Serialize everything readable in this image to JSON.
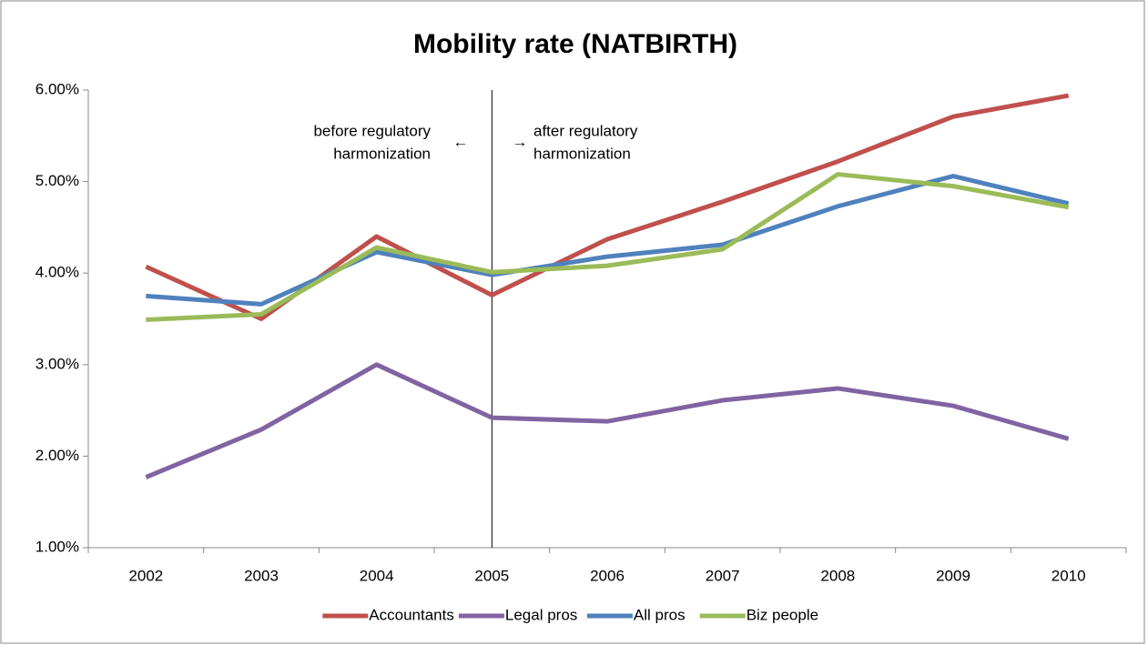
{
  "chart_data": {
    "type": "line",
    "title": "Mobility rate (NATBIRTH)",
    "categories": [
      "2002",
      "2003",
      "2004",
      "2005",
      "2006",
      "2007",
      "2008",
      "2009",
      "2010"
    ],
    "series": [
      {
        "name": "Accountants",
        "color": "#c0504d",
        "values": [
          4.07,
          3.5,
          4.4,
          3.76,
          4.37,
          4.78,
          5.22,
          5.71,
          5.94
        ]
      },
      {
        "name": "Legal pros",
        "color": "#8064a2",
        "values": [
          1.77,
          2.29,
          3.0,
          2.42,
          2.38,
          2.61,
          2.74,
          2.55,
          2.19
        ]
      },
      {
        "name": "All pros",
        "color": "#4f81bd",
        "values": [
          3.75,
          3.66,
          4.23,
          3.98,
          4.18,
          4.31,
          4.73,
          5.06,
          4.76
        ]
      },
      {
        "name": "Biz people",
        "color": "#9bbb59",
        "values": [
          3.49,
          3.55,
          4.28,
          4.01,
          4.08,
          4.26,
          5.08,
          4.95,
          4.72
        ]
      }
    ],
    "ylim": [
      1,
      6
    ],
    "yticks": [
      {
        "value": 1,
        "label": "1.00%"
      },
      {
        "value": 2,
        "label": "2.00%"
      },
      {
        "value": 3,
        "label": "3.00%"
      },
      {
        "value": 4,
        "label": "4.00%"
      },
      {
        "value": 5,
        "label": "5.00%"
      },
      {
        "value": 6,
        "label": "6.00%"
      }
    ],
    "vline": "2005",
    "annotations": [
      "before regulatory",
      "harmonization",
      "after regulatory",
      "harmonization",
      "←",
      "→"
    ],
    "legend": "bottom"
  }
}
